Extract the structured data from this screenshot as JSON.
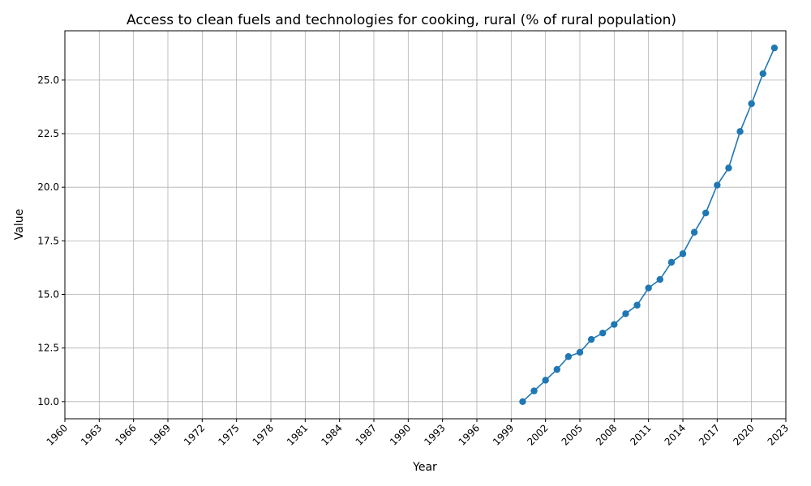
{
  "chart_data": {
    "type": "line",
    "title": "Access to clean fuels and technologies for cooking, rural (% of rural population)",
    "xlabel": "Year",
    "ylabel": "Value",
    "xlim": [
      1960,
      2023
    ],
    "ylim": [
      9.2,
      27.3
    ],
    "x_ticks": [
      1960,
      1963,
      1966,
      1969,
      1972,
      1975,
      1978,
      1981,
      1984,
      1987,
      1990,
      1993,
      1996,
      1999,
      2002,
      2005,
      2008,
      2011,
      2014,
      2017,
      2020,
      2023
    ],
    "y_ticks": [
      10.0,
      12.5,
      15.0,
      17.5,
      20.0,
      22.5,
      25.0
    ],
    "y_tick_labels": [
      "10.0",
      "12.5",
      "15.0",
      "17.5",
      "20.0",
      "22.5",
      "25.0"
    ],
    "grid": true,
    "marker": "circle",
    "color": "#1f77b4",
    "series": [
      {
        "x": [
          2000,
          2001,
          2002,
          2003,
          2004,
          2005,
          2006,
          2007,
          2008,
          2009,
          2010,
          2011,
          2012,
          2013,
          2014,
          2015,
          2016,
          2017,
          2018,
          2019,
          2020,
          2021,
          2022
        ],
        "values": [
          10.0,
          10.5,
          11.0,
          11.5,
          12.1,
          12.3,
          12.9,
          13.2,
          13.6,
          14.1,
          14.5,
          15.3,
          15.7,
          16.5,
          16.9,
          17.9,
          18.8,
          20.1,
          20.9,
          22.6,
          23.9,
          25.3,
          26.5
        ]
      }
    ]
  }
}
